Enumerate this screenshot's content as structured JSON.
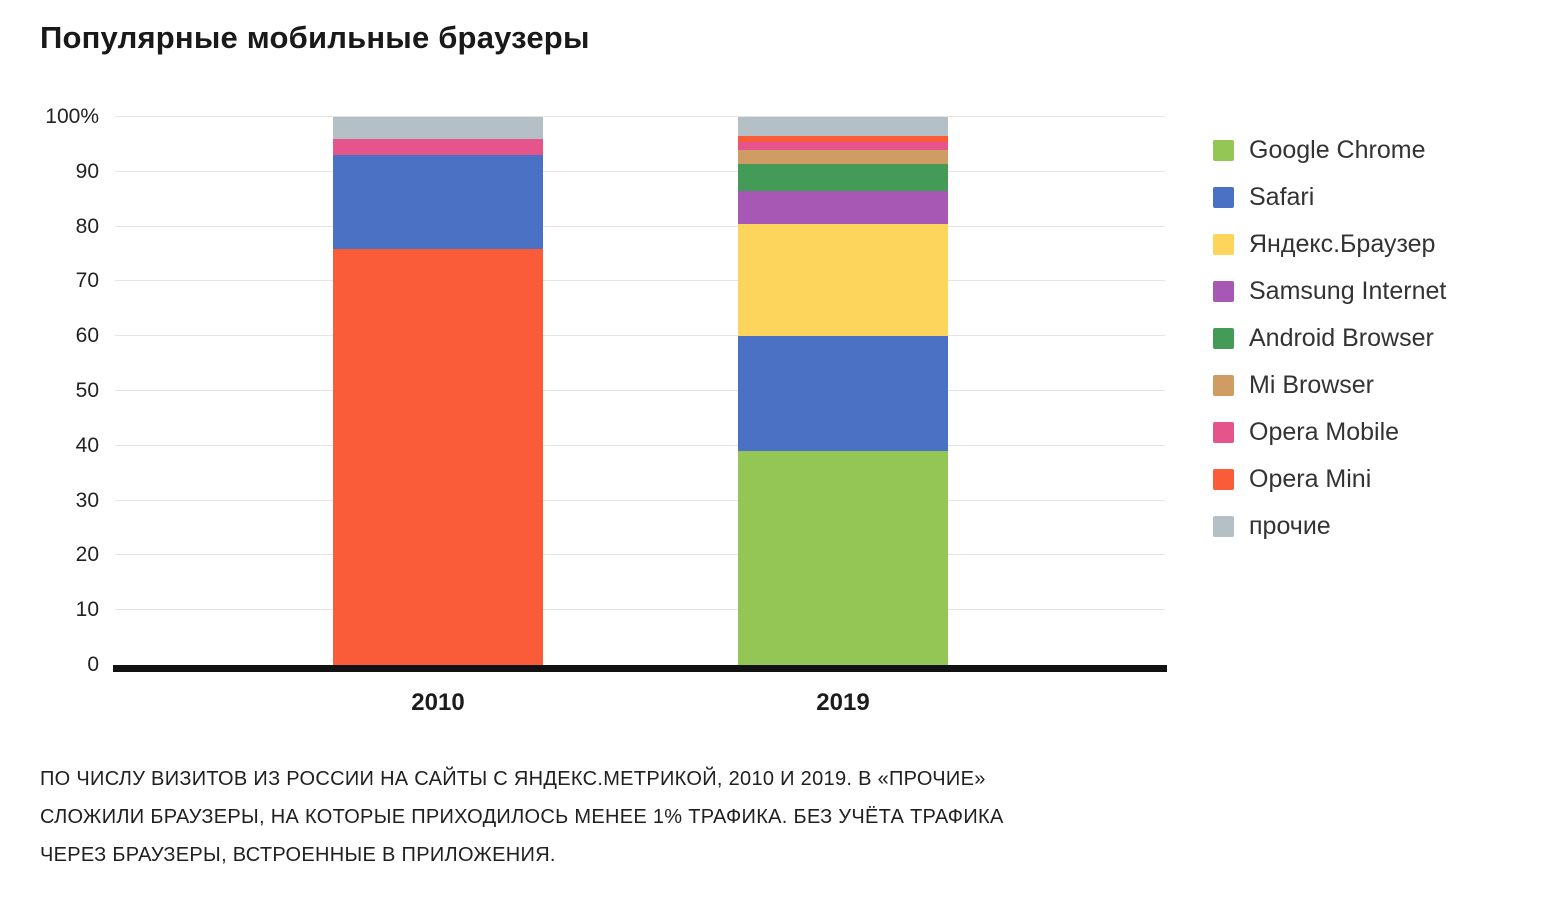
{
  "title": "Популярные мобильные браузеры",
  "footer": {
    "line1": "ПО ЧИСЛУ ВИЗИТОВ ИЗ РОССИИ НА САЙТЫ С ЯНДЕКС.МЕТРИКОЙ, 2010 И 2019.  В «ПРОЧИЕ»",
    "line2": "СЛОЖИЛИ БРАУЗЕРЫ, НА КОТОРЫЕ ПРИХОДИЛОСЬ МЕНЕЕ 1% ТРАФИКА. БЕЗ УЧЁТА ТРАФИКА",
    "line3": "ЧЕРЕЗ БРАУЗЕРЫ, ВСТРОЕННЫЕ В ПРИЛОЖЕНИЯ."
  },
  "chart_data": {
    "type": "bar",
    "stacked": true,
    "title": "Популярные мобильные браузеры",
    "categories": [
      "2010",
      "2019"
    ],
    "series": [
      {
        "name": "Google Chrome",
        "color": "#94c656",
        "values": [
          0,
          39
        ]
      },
      {
        "name": "Safari",
        "color": "#4a71c4",
        "values": [
          17,
          21
        ]
      },
      {
        "name": "Яндекс.Браузер",
        "color": "#fdd45c",
        "values": [
          0,
          20.5
        ]
      },
      {
        "name": "Samsung Internet",
        "color": "#a757b4",
        "values": [
          0,
          6
        ]
      },
      {
        "name": "Android Browser",
        "color": "#449b57",
        "values": [
          0,
          5
        ]
      },
      {
        "name": "Mi Browser",
        "color": "#cf9d64",
        "values": [
          0,
          2.5
        ]
      },
      {
        "name": "Opera Mobile",
        "color": "#e5548b",
        "values": [
          3,
          1.5
        ]
      },
      {
        "name": "Opera Mini",
        "color": "#fa5b38",
        "values": [
          76,
          1
        ]
      },
      {
        "name": "прочие",
        "color": "#b5bfc6",
        "values": [
          4,
          3.5
        ]
      }
    ],
    "stack_order": [
      [
        "Opera Mini",
        "Safari",
        "Opera Mobile",
        "прочие"
      ],
      [
        "Google Chrome",
        "Safari",
        "Яндекс.Браузер",
        "Samsung Internet",
        "Android Browser",
        "Mi Browser",
        "Opera Mobile",
        "Opera Mini",
        "прочие"
      ]
    ],
    "xlabel": "",
    "ylabel": "",
    "ylim": [
      0,
      100
    ],
    "yticks": [
      0,
      10,
      20,
      30,
      40,
      50,
      60,
      70,
      80,
      90,
      100
    ],
    "ytick_labels": [
      "0",
      "10",
      "20",
      "30",
      "40",
      "50",
      "60",
      "70",
      "80",
      "90",
      "100%"
    ],
    "grid": true,
    "legend_position": "right"
  }
}
